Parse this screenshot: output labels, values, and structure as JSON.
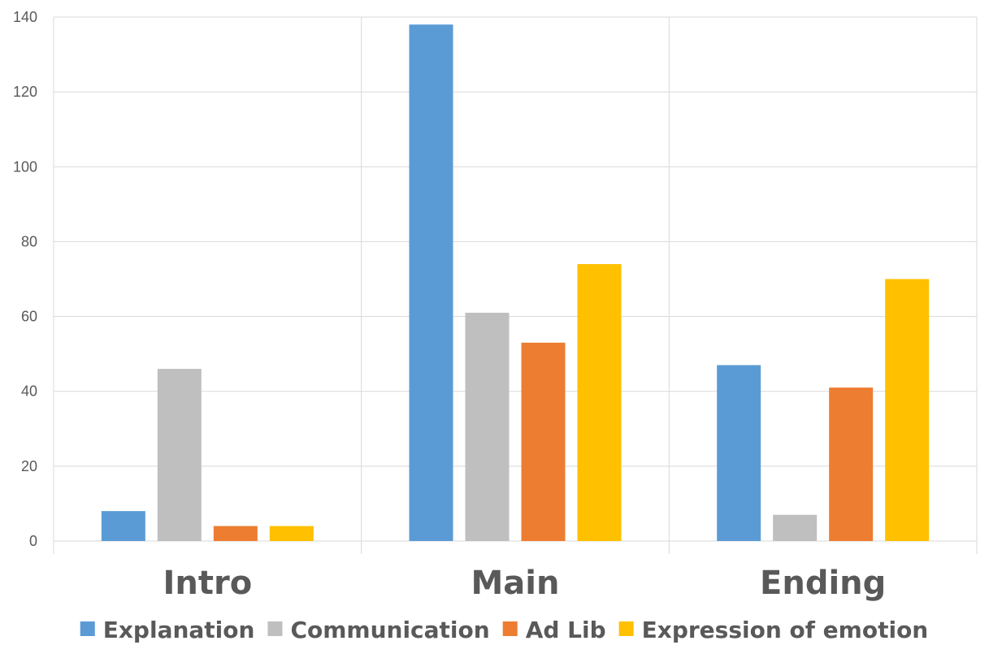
{
  "chart_data": {
    "type": "bar",
    "categories": [
      "Intro",
      "Main",
      "Ending"
    ],
    "series": [
      {
        "name": "Explanation",
        "color": "#5B9BD5",
        "values": [
          8,
          138,
          47
        ]
      },
      {
        "name": "Communication",
        "color": "#BFBFBF",
        "values": [
          46,
          61,
          7
        ]
      },
      {
        "name": "Ad Lib",
        "color": "#ED7D31",
        "values": [
          4,
          53,
          41
        ]
      },
      {
        "name": "Expression of emotion",
        "color": "#FFC000",
        "values": [
          4,
          74,
          70
        ]
      }
    ],
    "ylim": [
      0,
      140
    ],
    "yticks": [
      "0",
      "20",
      "40",
      "60",
      "80",
      "100",
      "120",
      "140"
    ],
    "grid": true,
    "legend_position": "bottom"
  }
}
